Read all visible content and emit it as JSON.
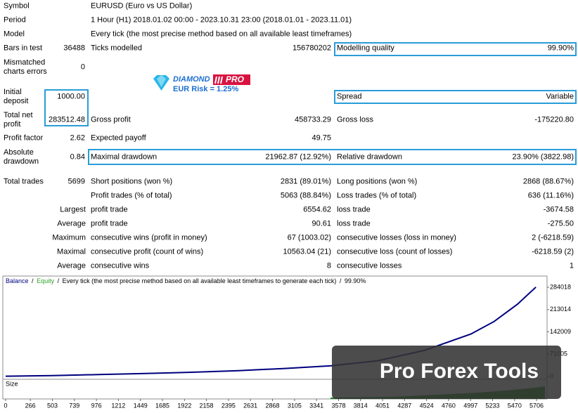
{
  "report": {
    "info": [
      {
        "label": "Symbol",
        "value": "EURUSD (Euro vs US Dollar)"
      },
      {
        "label": "Period",
        "value": "1 Hour (H1) 2018.01.02 00:00 - 2023.10.31 23:00 (2018.01.01 - 2023.11.01)"
      },
      {
        "label": "Model",
        "value": "Every tick (the most precise method based on all available least timeframes)"
      }
    ],
    "stats": [
      {
        "label": "Bars in test",
        "value": "36488",
        "label2": "Ticks modelled",
        "value2": "156780202",
        "label3": "Modelling quality",
        "value3": "99.90%"
      },
      {
        "label": "Mismatched charts errors",
        "value": "0"
      },
      {
        "label": "Initial deposit",
        "value": "1000.00",
        "label3": "Spread",
        "value3": "Variable"
      },
      {
        "label": "Total net profit",
        "value": "283512.48",
        "label2": "Gross profit",
        "value2": "458733.29",
        "label3": "Gross loss",
        "value3": "-175220.80"
      },
      {
        "label": "Profit factor",
        "value": "2.62",
        "label2": "Expected payoff",
        "value2": "49.75"
      },
      {
        "label": "Absolute drawdown",
        "value": "0.84",
        "label2": "Maximal drawdown",
        "value2": "21962.87 (12.92%)",
        "label3": "Relative drawdown",
        "value3": "23.90% (3822.98)"
      },
      {
        "label": "Total trades",
        "value": "5699",
        "label2": "Short positions (won %)",
        "value2": "2831 (89.01%)",
        "label3": "Long positions (won %)",
        "value3": "2868 (88.67%)"
      },
      {
        "label2": "Profit trades (% of total)",
        "value2": "5063 (88.84%)",
        "label3": "Loss trades (% of total)",
        "value3": "636 (11.16%)"
      },
      {
        "prefix": "Largest",
        "label2": "profit trade",
        "value2": "6554.62",
        "label3": "loss trade",
        "value3": "-3674.58"
      },
      {
        "prefix": "Average",
        "label2": "profit trade",
        "value2": "90.61",
        "label3": "loss trade",
        "value3": "-275.50"
      },
      {
        "prefix": "Maximum",
        "label2": "consecutive wins (profit in money)",
        "value2": "67 (1003.02)",
        "label3": "consecutive losses (loss in money)",
        "value3": "2 (-6218.59)"
      },
      {
        "prefix": "Maximal",
        "label2": "consecutive profit (count of wins)",
        "value2": "10563.04 (21)",
        "label3": "consecutive loss (count of losses)",
        "value3": "-6218.59 (2)"
      },
      {
        "prefix": "Average",
        "label2": "consecutive wins",
        "value2": "8",
        "label3": "consecutive losses",
        "value3": "1"
      }
    ]
  },
  "logo": {
    "brand": "DIAMOND",
    "badge": "PRO",
    "risk": "EUR Risk = 1.25%"
  },
  "watermark": "Pro Forex Tools",
  "chart_data": {
    "type": "line",
    "separator": "/",
    "subtitle": "Every tick (the most precise method based on all available least timeframes to generate each tick)",
    "quality": "99.90%",
    "panel_label": "Size",
    "x": [
      0,
      500,
      1000,
      1500,
      2000,
      2500,
      3000,
      3500,
      4000,
      4500,
      5000,
      5250,
      5500,
      5699
    ],
    "series": [
      {
        "name": "Balance",
        "color": "#00007f",
        "values": [
          1000,
          3000,
          6000,
          9500,
          13500,
          18500,
          25500,
          34000,
          50000,
          83000,
          135000,
          175000,
          230000,
          284512
        ]
      },
      {
        "name": "Equity",
        "color": "#2ca02c",
        "values": [
          1000,
          3000,
          6000,
          9500,
          13500,
          18500,
          25500,
          34000,
          50000,
          83000,
          135000,
          175000,
          230000,
          284512
        ]
      }
    ],
    "xlim": [
      0,
      5819
    ],
    "ylim": [
      -8945,
      319800
    ],
    "xticks": [
      0,
      266,
      503,
      739,
      976,
      1212,
      1449,
      1685,
      1922,
      2158,
      2395,
      2631,
      2868,
      3105,
      3341,
      3578,
      3814,
      4051,
      4287,
      4524,
      4760,
      4997,
      5233,
      5470,
      5706
    ],
    "yticks": [
      0,
      71005,
      142009,
      213014,
      284018
    ]
  }
}
